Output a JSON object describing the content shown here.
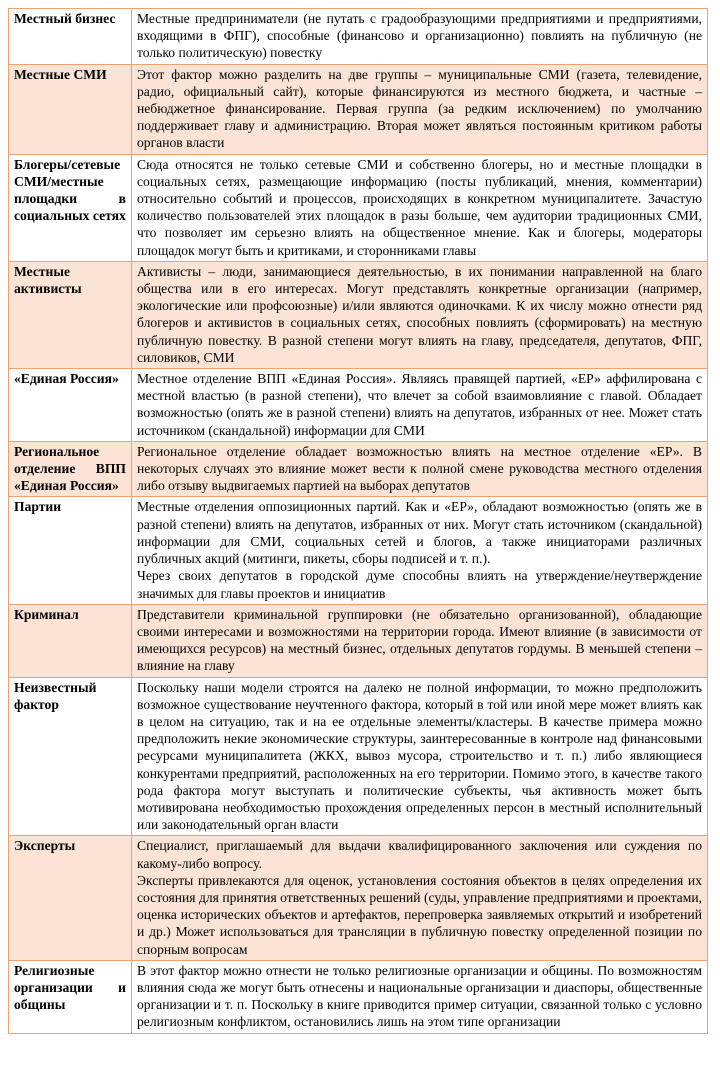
{
  "document": {
    "type": "two-column-definition-table",
    "language": "ru",
    "colors": {
      "shaded_row_bg": "#fbe4d5",
      "plain_row_bg": "#ffffff",
      "border": "#eea06e",
      "text": "#000000",
      "page_bg": "#ffffff"
    }
  },
  "table": {
    "columns": [
      "term",
      "description"
    ],
    "rows": [
      {
        "term": "Местный бизнес",
        "shaded": false,
        "description": [
          "Местные предприниматели (не путать с градообразующими предприятиями и предприятиями, входящими в ФПГ), способные (финансово и организационно) повлиять на публичную (не только политическую) повестку"
        ]
      },
      {
        "term": "Местные СМИ",
        "shaded": true,
        "description": [
          "Этот фактор можно разделить на две группы – муниципальные СМИ (газета, телевидение, радио, официальный сайт), которые финансируются из местного бюджета, и частные – небюджетное финансирование. Первая группа (за редким исключением) по умолчанию поддерживает главу и администрацию. Вторая может являться постоянным критиком работы органов власти"
        ]
      },
      {
        "term": "Блогеры/сетевые СМИ/местные площадки в социальных сетях",
        "shaded": false,
        "description": [
          "Сюда относятся не только сетевые СМИ и собственно блогеры, но и местные площадки в социальных сетях, размещающие информацию (посты публикаций, мнения, комментарии) относительно событий и процессов, происходящих в конкретном муниципалитете. Зачастую количество пользователей этих площадок в разы больше, чем аудитории традиционных СМИ, что позволяет им серьезно влиять на общественное мнение. Как и блогеры, модераторы площадок могут быть и критиками, и сторонниками главы"
        ]
      },
      {
        "term": "Местные активисты",
        "shaded": true,
        "description": [
          "Активисты – люди, занимающиеся деятельностью, в их понимании направленной на благо общества или в его интересах. Могут представлять конкретные организации (например, экологические или профсоюзные) и/или являются одиночками. К их числу можно отнести ряд блогеров и активистов в социальных сетях, способных повлиять (сформировать) на местную публичную повестку. В разной степени могут влиять на главу, председателя, депутатов, ФПГ, силовиков,  СМИ"
        ]
      },
      {
        "term": "«Единая Россия»",
        "shaded": false,
        "description": [
          "Местное отделение ВПП «Единая Россия». Являясь правящей партией, «ЕР» аффилирована с местной властью (в разной степени), что влечет за собой взаимовлияние с главой. Обладает возможностью (опять же в разной степени) влиять на депутатов, избранных от нее. Может стать источником (скандальной) информации  для СМИ"
        ]
      },
      {
        "term": "Региональное отделение ВПП «Единая Россия»",
        "shaded": true,
        "description": [
          "Региональное отделение обладает возможностью влиять на местное отделение «ЕР». В некоторых случаях это влияние может вести к полной смене руководства местного отделения либо отзыву выдвигаемых партией на выборах депутатов"
        ]
      },
      {
        "term": "Партии",
        "shaded": false,
        "description": [
          "Местные отделения оппозиционных партий. Как и «ЕР», обладают возможностью (опять же в разной степени) влиять на депутатов, избранных от них. Могут стать источником (скандальной) информации для СМИ, социальных сетей и блогов, а также инициаторами различных публичных акций (митинги, пикеты, сборы подписей и т. п.).",
          "Через своих депутатов в городской думе способны влиять на утверждение/неутверждение значимых для главы проектов и инициатив"
        ]
      },
      {
        "term": "Криминал",
        "shaded": true,
        "description": [
          "Представители криминальной группировки (не обязательно организованной), обладающие своими интересами и возможностями на территории города. Имеют влияние (в зависимости от имеющихся ресурсов) на местный бизнес, отдельных депутатов гордумы. В меньшей степени – влияние  на главу"
        ]
      },
      {
        "term": "Неизвестный фактор",
        "shaded": false,
        "description": [
          "Поскольку наши модели строятся на далеко не полной информации, то можно предположить возможное существование неучтенного фактора, который в той или иной мере может влиять как в целом на ситуацию, так и на ее отдельные элементы/кластеры. В качестве примера можно предположить некие экономические структуры, заинтересованные в контроле над финансовыми ресурсами муниципалитета (ЖКХ, вывоз мусора, строительство и т. п.) либо являющиеся конкурентами предприятий, расположенных на его территории. Помимо этого, в качестве такого рода фактора могут выступать и политические субъекты, чья активность может быть мотивирована необходимостью прохождения определенных персон в местный исполнительный или законодательный орган власти"
        ]
      },
      {
        "term": "Эксперты",
        "shaded": true,
        "description": [
          "Специалист, приглашаемый для выдачи квалифицированного заключения или суждения по какому-либо вопросу.",
          "Эксперты привлекаются для оценок, установления состояния объектов в целях определения их состояния для принятия ответственных решений (суды, управление предприятиями и проектами, оценка исторических объектов и артефактов, перепроверка заявляемых открытий и изобретений и др.) Может использоваться для трансляции в публичную повестку определенной позиции  по спорным вопросам"
        ]
      },
      {
        "term": "Религиозные организации  и общины",
        "shaded": false,
        "description": [
          "В этот фактор можно отнести не только религиозные организации и общины. По возможностям влияния сюда же могут быть отнесены и национальные организации и диаспоры, общественные организации и т. п. Поскольку в книге приводится пример ситуации, связанной только с условно религиозным конфликтом, остановились лишь на этом типе организации"
        ]
      }
    ]
  }
}
